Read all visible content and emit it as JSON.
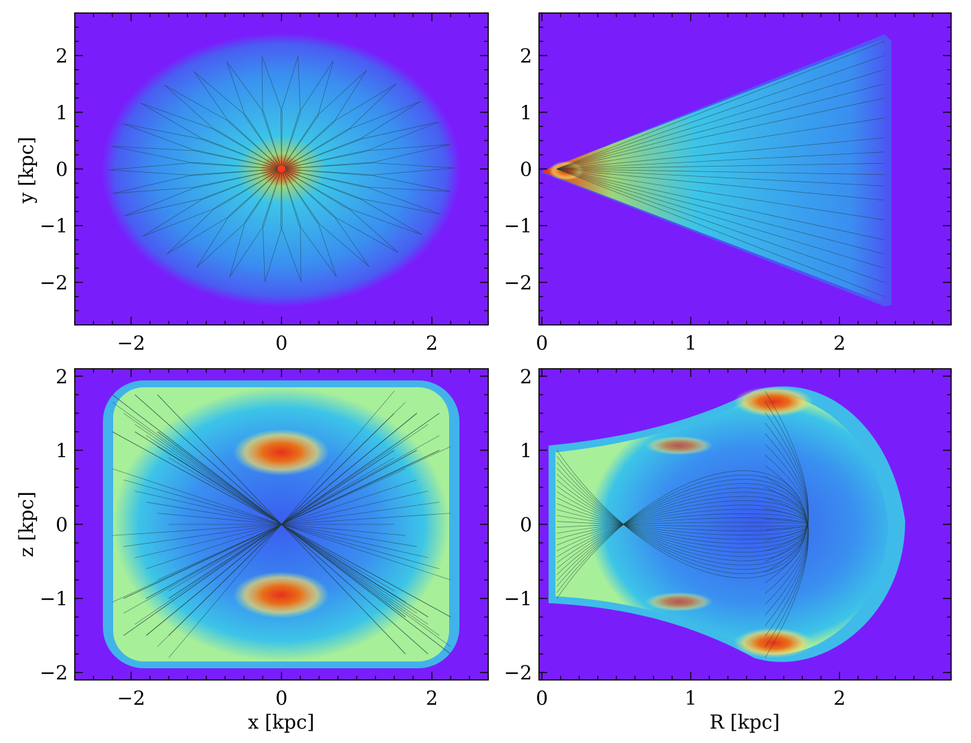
{
  "chart_data": [
    {
      "id": "xy",
      "type": "heatmap",
      "description_of_overlay": "orbit trajectories",
      "xlabel": "",
      "ylabel": "y [kpc]",
      "xlim": [
        -2.75,
        2.75
      ],
      "ylim": [
        -2.75,
        2.75
      ],
      "xticks": [
        -2,
        0,
        2
      ],
      "yticks": [
        -2,
        -1,
        0,
        1,
        2
      ],
      "xtick_labels": [
        "−2",
        "0",
        "2"
      ],
      "ytick_labels": [
        "−2",
        "−1",
        "0",
        "1",
        "2"
      ],
      "colormap": "rainbow (purple low → red high)"
    },
    {
      "id": "Ry",
      "type": "heatmap",
      "xlabel": "",
      "ylabel": "",
      "xlim": [
        -0.02,
        2.75
      ],
      "ylim": [
        -2.75,
        2.75
      ],
      "xticks": [
        0,
        1,
        2
      ],
      "yticks": [
        -2,
        -1,
        0,
        1,
        2
      ],
      "xtick_labels": [
        "0",
        "1",
        "2"
      ],
      "ytick_labels": [
        "−2",
        "−1",
        "0",
        "1",
        "2"
      ],
      "colormap": "rainbow (purple low → red high)"
    },
    {
      "id": "xz",
      "type": "heatmap",
      "xlabel": "x [kpc]",
      "ylabel": "z [kpc]",
      "xlim": [
        -2.75,
        2.75
      ],
      "ylim": [
        -2.1,
        2.1
      ],
      "xticks": [
        -2,
        0,
        2
      ],
      "yticks": [
        -2,
        -1,
        0,
        1,
        2
      ],
      "xtick_labels": [
        "−2",
        "0",
        "2"
      ],
      "ytick_labels": [
        "−2",
        "−1",
        "0",
        "1",
        "2"
      ],
      "colormap": "rainbow (purple low → red high)"
    },
    {
      "id": "Rz",
      "type": "heatmap",
      "xlabel": "R [kpc]",
      "ylabel": "",
      "xlim": [
        -0.02,
        2.75
      ],
      "ylim": [
        -2.1,
        2.1
      ],
      "xticks": [
        0,
        1,
        2
      ],
      "yticks": [
        -2,
        -1,
        0,
        1,
        2
      ],
      "xtick_labels": [
        "0",
        "1",
        "2"
      ],
      "ytick_labels": [
        "−2",
        "−1",
        "0",
        "1",
        "2"
      ],
      "colormap": "rainbow (purple low → red high)"
    }
  ],
  "colors": {
    "background": "#7a1dfb",
    "blue": "#3a6df0",
    "cyan": "#3cc4e8",
    "green": "#a8ef9a",
    "yellow": "#f2d86a",
    "red": "#e8301a",
    "orbit_line": "#1f3a3a"
  }
}
